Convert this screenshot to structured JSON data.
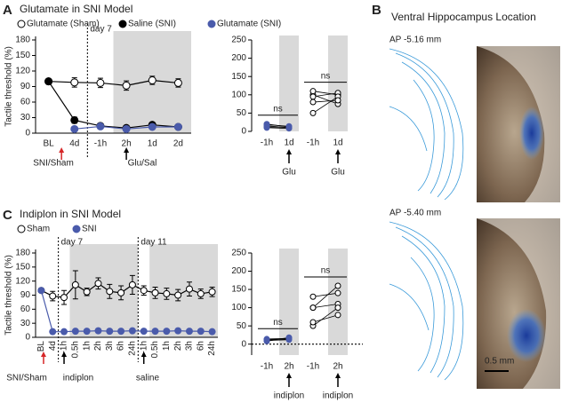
{
  "panel_labels": [
    "A",
    "B",
    "C"
  ],
  "panel_b": {
    "title": "Ventral Hippocampus Location",
    "sections": [
      {
        "label": "AP -5.16 mm"
      },
      {
        "label": "AP -5.40 mm"
      }
    ],
    "scale_bar": "0.5 mm"
  },
  "chart_data": [
    {
      "type": "line",
      "title": "Glutamate in SNI Model",
      "y_label": "Tactile threshold (%)",
      "categories": [
        "BL",
        "4d",
        "-1h",
        "2h",
        "1d",
        "2d"
      ],
      "ylim": [
        0,
        180
      ],
      "yticks": [
        0,
        30,
        60,
        90,
        120,
        150,
        180
      ],
      "vlines": [
        "day 7"
      ],
      "annotations": [
        "SNI/Sham",
        "Glu/Sal"
      ],
      "series": [
        {
          "name": "Glutamate (Sham)",
          "color": "#ffffff",
          "values": [
            100,
            98,
            97,
            92,
            102,
            97
          ],
          "errors": [
            2,
            9,
            9,
            9,
            8,
            8
          ]
        },
        {
          "name": "Saline (SNI)",
          "color": "#000000",
          "values": [
            100,
            25,
            14,
            10,
            16,
            12
          ],
          "errors": [
            1,
            6,
            3,
            3,
            3,
            3
          ]
        },
        {
          "name": "Glutamate (SNI)",
          "color": "#4a5bab",
          "values": [
            null,
            8,
            13,
            8,
            12,
            12
          ]
        }
      ]
    },
    {
      "type": "paired",
      "ylim": [
        0,
        250
      ],
      "yticks": [
        0,
        50,
        100,
        150,
        200,
        250
      ],
      "groups": [
        {
          "label": "Glu",
          "categories": [
            "-1h",
            "1d"
          ],
          "color": "#4a5bab",
          "before": [
            20,
            15,
            10,
            18,
            12
          ],
          "after": [
            12,
            10,
            8,
            14,
            11
          ],
          "annotation": "ns"
        },
        {
          "label": "Glu",
          "categories": [
            "-1h",
            "1d"
          ],
          "color": "#ffffff",
          "before": [
            100,
            110,
            95,
            50,
            80
          ],
          "after": [
            75,
            100,
            105,
            95,
            85
          ],
          "annotation": "ns"
        }
      ]
    },
    {
      "type": "line",
      "title": "Indiplon in SNI Model",
      "y_label": "Tactile threshold (%)",
      "categories": [
        "BL",
        "4d",
        "-1h",
        "0.5h",
        "1h",
        "2h",
        "3h",
        "6h",
        "24h",
        "-1h",
        "0.5h",
        "1h",
        "2h",
        "3h",
        "6h",
        "24h"
      ],
      "ylim": [
        0,
        180
      ],
      "yticks": [
        0,
        30,
        60,
        90,
        120,
        150,
        180
      ],
      "vlines": [
        "day 7",
        "day 11"
      ],
      "annotations": [
        "SNI/Sham",
        "indiplon",
        "saline"
      ],
      "series": [
        {
          "name": "Sham",
          "color": "#ffffff",
          "values": [
            100,
            88,
            85,
            112,
            97,
            115,
            98,
            95,
            112,
            100,
            95,
            93,
            90,
            103,
            93,
            97
          ],
          "errors": [
            4,
            10,
            15,
            30,
            8,
            12,
            15,
            15,
            20,
            10,
            12,
            12,
            12,
            15,
            10,
            10
          ]
        },
        {
          "name": "SNI",
          "color": "#4a5bab",
          "values": [
            100,
            12,
            12,
            13,
            13,
            14,
            13,
            13,
            14,
            13,
            13,
            13,
            14,
            13,
            13,
            12
          ]
        }
      ]
    },
    {
      "type": "paired",
      "ylim": [
        -30,
        250
      ],
      "yticks": [
        0,
        50,
        100,
        150,
        200,
        250
      ],
      "zero_line": true,
      "groups": [
        {
          "label": "indiplon",
          "categories": [
            "-1h",
            "2h"
          ],
          "color": "#4a5bab",
          "before": [
            12,
            10,
            14,
            8,
            12
          ],
          "after": [
            14,
            12,
            16,
            18,
            15
          ],
          "annotation": "ns"
        },
        {
          "label": "indiplon",
          "categories": [
            "-1h",
            "2h"
          ],
          "color": "#ffffff",
          "before": [
            100,
            130,
            100,
            50,
            60
          ],
          "after": [
            160,
            140,
            110,
            100,
            80
          ],
          "annotation": "ns"
        }
      ]
    }
  ]
}
